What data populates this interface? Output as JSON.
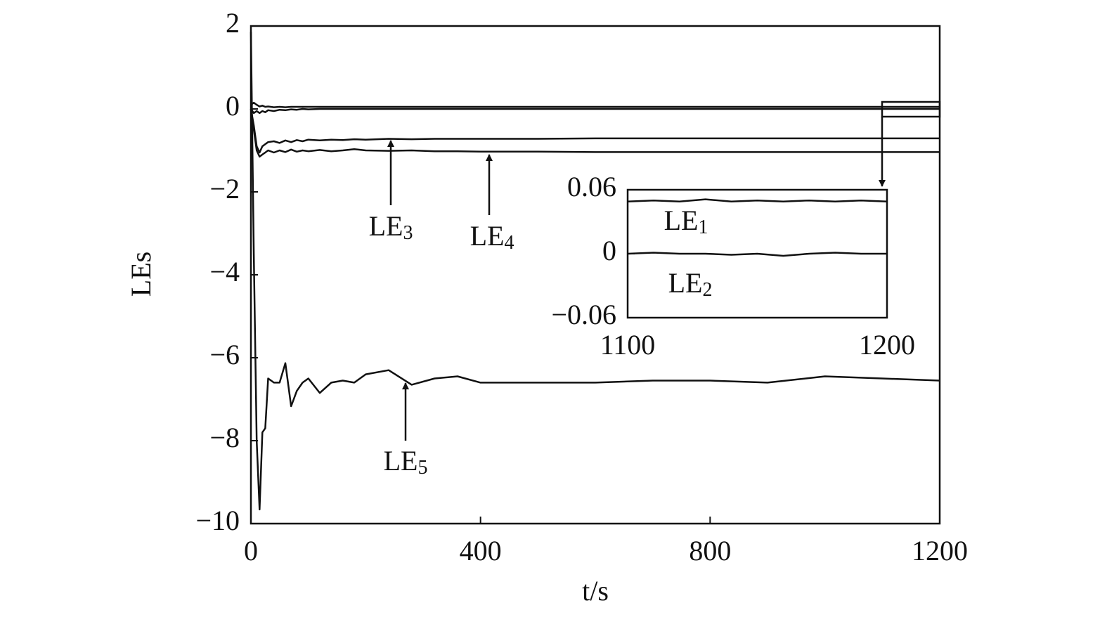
{
  "chart_data": [
    {
      "type": "line",
      "xlabel": "t/s",
      "ylabel": "LEs",
      "xlim": [
        0,
        1200
      ],
      "ylim": [
        -10,
        2
      ],
      "xticks": [
        0,
        400,
        800,
        1200
      ],
      "yticks": [
        {
          "value": -10,
          "label": "−10"
        },
        {
          "value": -8,
          "label": "−8"
        },
        {
          "value": -6,
          "label": "−6"
        },
        {
          "value": -4,
          "label": "−4"
        },
        {
          "value": -2,
          "label": "−2"
        },
        0,
        2
      ],
      "x": [
        0,
        5,
        10,
        15,
        20,
        25,
        30,
        40,
        50,
        60,
        70,
        80,
        90,
        100,
        120,
        140,
        160,
        180,
        200,
        240,
        280,
        320,
        360,
        400,
        500,
        600,
        700,
        800,
        900,
        1000,
        1100,
        1200
      ],
      "series": [
        {
          "name": "LE₁",
          "color": "#111111",
          "values": [
            0.1,
            0.15,
            0.1,
            0.06,
            0.08,
            0.05,
            0.06,
            0.04,
            0.05,
            0.04,
            0.05,
            0.05,
            0.05,
            0.05,
            0.05,
            0.05,
            0.05,
            0.05,
            0.05,
            0.05,
            0.05,
            0.05,
            0.05,
            0.05,
            0.05,
            0.05,
            0.05,
            0.05,
            0.05,
            0.05,
            0.05,
            0.05
          ]
        },
        {
          "name": "LE₂",
          "color": "#111111",
          "values": [
            0,
            -0.1,
            -0.05,
            -0.1,
            -0.05,
            -0.08,
            -0.03,
            -0.05,
            -0.02,
            -0.03,
            -0.01,
            -0.02,
            0,
            -0.01,
            0,
            0,
            0,
            0,
            0,
            0,
            0,
            0,
            0,
            0,
            0,
            0,
            0,
            0,
            0,
            0,
            0,
            0
          ]
        },
        {
          "name": "LE₃",
          "color": "#111111",
          "values": [
            0,
            -0.4,
            -0.9,
            -1.05,
            -0.9,
            -0.85,
            -0.8,
            -0.78,
            -0.82,
            -0.76,
            -0.8,
            -0.75,
            -0.78,
            -0.74,
            -0.76,
            -0.74,
            -0.75,
            -0.73,
            -0.74,
            -0.72,
            -0.73,
            -0.72,
            -0.72,
            -0.72,
            -0.72,
            -0.71,
            -0.71,
            -0.71,
            -0.71,
            -0.71,
            -0.71,
            -0.71
          ]
        },
        {
          "name": "LE₄",
          "color": "#111111",
          "values": [
            0,
            -0.5,
            -1.0,
            -1.15,
            -1.1,
            -1.05,
            -1.0,
            -1.05,
            -1.0,
            -1.04,
            -0.98,
            -1.03,
            -1.0,
            -1.02,
            -0.99,
            -1.02,
            -1.0,
            -0.97,
            -1.0,
            -1.01,
            -1.0,
            -1.02,
            -1.02,
            -1.03,
            -1.03,
            -1.04,
            -1.04,
            -1.04,
            -1.04,
            -1.04,
            -1.04,
            -1.04
          ]
        },
        {
          "name": "LE₅",
          "color": "#111111",
          "values": [
            1.86,
            -3.5,
            -8.0,
            -9.66,
            -7.8,
            -7.7,
            -6.5,
            -6.6,
            -6.6,
            -6.13,
            -7.17,
            -6.8,
            -6.6,
            -6.5,
            -6.85,
            -6.6,
            -6.55,
            -6.6,
            -6.4,
            -6.3,
            -6.65,
            -6.5,
            -6.45,
            -6.6,
            -6.6,
            -6.6,
            -6.55,
            -6.55,
            -6.6,
            -6.45,
            -6.5,
            -6.55
          ]
        }
      ]
    },
    {
      "type": "line",
      "xlim": [
        1100,
        1200
      ],
      "ylim": [
        -0.06,
        0.06
      ],
      "xticks": [
        1100,
        1200
      ],
      "yticks": [
        {
          "value": -0.06,
          "label": "−0.06"
        },
        0,
        0.06
      ],
      "x": [
        1100,
        1110,
        1120,
        1130,
        1140,
        1150,
        1160,
        1170,
        1180,
        1190,
        1200
      ],
      "series": [
        {
          "name": "LE₁",
          "color": "#111111",
          "values": [
            0.049,
            0.05,
            0.049,
            0.051,
            0.049,
            0.05,
            0.049,
            0.05,
            0.049,
            0.05,
            0.049
          ]
        },
        {
          "name": "LE₂",
          "color": "#111111",
          "values": [
            0,
            0.001,
            0,
            0,
            -0.001,
            0,
            -0.002,
            0,
            0.001,
            0,
            0
          ]
        }
      ]
    }
  ]
}
